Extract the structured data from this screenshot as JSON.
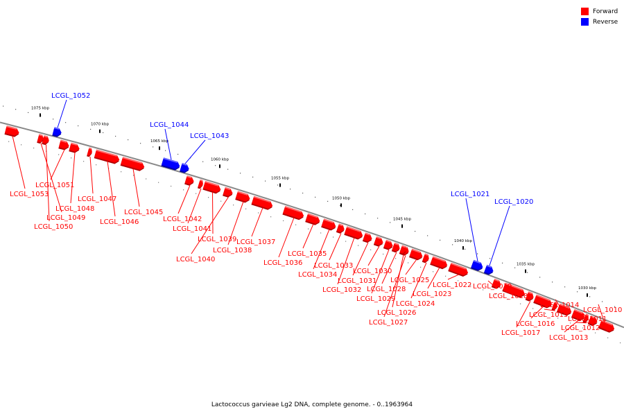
{
  "legend": {
    "forward_label": "Forward",
    "reverse_label": "Reverse",
    "forward_color": "#ff0000",
    "reverse_color": "#0000ff"
  },
  "caption": "Lactococcus garvieae Lg2 DNA, complete genome. - 0..1963964",
  "scale_ticks": [
    "1075 kbp",
    "1070 kbp",
    "1065 kbp",
    "1060 kbp",
    "1055 kbp",
    "1050 kbp",
    "1045 kbp",
    "1040 kbp",
    "1035 kbp",
    "1030 kbp"
  ],
  "genes": [
    {
      "label": "LCGL_1052",
      "strand": "reverse"
    },
    {
      "label": "LCGL_1044",
      "strand": "reverse"
    },
    {
      "label": "LCGL_1043",
      "strand": "reverse"
    },
    {
      "label": "LCGL_1021",
      "strand": "reverse"
    },
    {
      "label": "LCGL_1020",
      "strand": "reverse"
    },
    {
      "label": "LCGL_1053",
      "strand": "forward"
    },
    {
      "label": "LCGL_1051",
      "strand": "forward"
    },
    {
      "label": "LCGL_1050",
      "strand": "forward"
    },
    {
      "label": "LCGL_1049",
      "strand": "forward"
    },
    {
      "label": "LCGL_1048",
      "strand": "forward"
    },
    {
      "label": "LCGL_1047",
      "strand": "forward"
    },
    {
      "label": "LCGL_1046",
      "strand": "forward"
    },
    {
      "label": "LCGL_1045",
      "strand": "forward"
    },
    {
      "label": "LCGL_1042",
      "strand": "forward"
    },
    {
      "label": "LCGL_1041",
      "strand": "forward"
    },
    {
      "label": "LCGL_1040",
      "strand": "forward"
    },
    {
      "label": "LCGL_1039",
      "strand": "forward"
    },
    {
      "label": "LCGL_1038",
      "strand": "forward"
    },
    {
      "label": "LCGL_1037",
      "strand": "forward"
    },
    {
      "label": "LCGL_1036",
      "strand": "forward"
    },
    {
      "label": "LCGL_1035",
      "strand": "forward"
    },
    {
      "label": "LCGL_1034",
      "strand": "forward"
    },
    {
      "label": "LCGL_1033",
      "strand": "forward"
    },
    {
      "label": "LCGL_1032",
      "strand": "forward"
    },
    {
      "label": "LCGL_1031",
      "strand": "forward"
    },
    {
      "label": "LCGL_1030",
      "strand": "forward"
    },
    {
      "label": "LCGL_1029",
      "strand": "forward"
    },
    {
      "label": "LCGL_1028",
      "strand": "forward"
    },
    {
      "label": "LCGL_1027",
      "strand": "forward"
    },
    {
      "label": "LCGL_1026",
      "strand": "forward"
    },
    {
      "label": "LCGL_1025",
      "strand": "forward"
    },
    {
      "label": "LCGL_1024",
      "strand": "forward"
    },
    {
      "label": "LCGL_1023",
      "strand": "forward"
    },
    {
      "label": "LCGL_1022",
      "strand": "forward"
    },
    {
      "label": "LCGL_1019",
      "strand": "forward"
    },
    {
      "label": "LCGL_1018",
      "strand": "forward"
    },
    {
      "label": "LCGL_1017",
      "strand": "forward"
    },
    {
      "label": "LCGL_1016",
      "strand": "forward"
    },
    {
      "label": "LCGL_1015",
      "strand": "forward"
    },
    {
      "label": "LCGL_1014",
      "strand": "forward"
    },
    {
      "label": "LCGL_1013",
      "strand": "forward"
    },
    {
      "label": "LCGL_1012",
      "strand": "forward"
    },
    {
      "label": "LCGL_1011",
      "strand": "forward"
    },
    {
      "label": "LCGL_1010",
      "strand": "forward"
    }
  ]
}
